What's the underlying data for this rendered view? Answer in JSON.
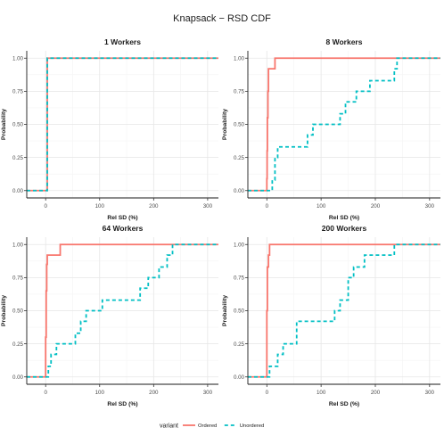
{
  "chart_data": {
    "type": "line",
    "title": "Knapsack − RSD CDF",
    "xlabel": "Rel SD (%)",
    "ylabel": "Probability",
    "xlim": [
      -35,
      320
    ],
    "ylim": [
      0,
      1
    ],
    "x_ticks": [
      "0",
      "100",
      "200",
      "300"
    ],
    "y_ticks": [
      "0.00",
      "0.25",
      "0.50",
      "0.75",
      "1.00"
    ],
    "grid": true,
    "legend": {
      "title": "variant",
      "position": "bottom",
      "entries": [
        {
          "name": "Ordered",
          "color": "#F8766D",
          "linetype": "solid"
        },
        {
          "name": "Unordered",
          "color": "#00BFC4",
          "linetype": "dashed"
        }
      ]
    },
    "panels": [
      {
        "title": "1 Workers",
        "series": [
          {
            "name": "Ordered",
            "x": [
              -35,
              3,
              3,
              320
            ],
            "y": [
              0,
              0,
              1,
              1
            ]
          },
          {
            "name": "Unordered",
            "x": [
              -35,
              3,
              3,
              320
            ],
            "y": [
              0,
              0,
              1,
              1
            ]
          }
        ]
      },
      {
        "title": "8 Workers",
        "series": [
          {
            "name": "Ordered",
            "x": [
              -35,
              0,
              0,
              0.5,
              0.5,
              1,
              1,
              2,
              2,
              3,
              3,
              15,
              15,
              320
            ],
            "y": [
              0,
              0,
              0.09,
              0.09,
              0.3,
              0.3,
              0.55,
              0.55,
              0.75,
              0.75,
              0.92,
              0.92,
              1,
              1
            ]
          },
          {
            "name": "Unordered",
            "x": [
              -35,
              10,
              10,
              15,
              15,
              20,
              20,
              75,
              75,
              85,
              85,
              135,
              135,
              145,
              145,
              165,
              165,
              190,
              190,
              235,
              235,
              240,
              240,
              320
            ],
            "y": [
              0,
              0,
              0.08,
              0.08,
              0.25,
              0.25,
              0.33,
              0.33,
              0.42,
              0.42,
              0.5,
              0.5,
              0.58,
              0.58,
              0.67,
              0.67,
              0.75,
              0.75,
              0.83,
              0.83,
              0.92,
              0.92,
              1,
              1
            ]
          }
        ]
      },
      {
        "title": "64 Workers",
        "series": [
          {
            "name": "Ordered",
            "x": [
              -35,
              0,
              0,
              1,
              1,
              2,
              2,
              3,
              3,
              27,
              27,
              320
            ],
            "y": [
              0,
              0,
              0.3,
              0.3,
              0.65,
              0.65,
              0.85,
              0.85,
              0.92,
              0.92,
              1,
              1
            ]
          },
          {
            "name": "Unordered",
            "x": [
              -35,
              5,
              5,
              10,
              10,
              20,
              20,
              55,
              55,
              65,
              65,
              75,
              75,
              105,
              105,
              175,
              175,
              190,
              190,
              210,
              210,
              225,
              225,
              235,
              235,
              320
            ],
            "y": [
              0,
              0,
              0.08,
              0.08,
              0.17,
              0.17,
              0.25,
              0.25,
              0.33,
              0.33,
              0.42,
              0.42,
              0.5,
              0.5,
              0.58,
              0.58,
              0.67,
              0.67,
              0.75,
              0.75,
              0.83,
              0.83,
              0.92,
              0.92,
              1,
              1
            ]
          }
        ]
      },
      {
        "title": "200 Workers",
        "series": [
          {
            "name": "Ordered",
            "x": [
              -35,
              0,
              0,
              1,
              1,
              3,
              3,
              5,
              5,
              320
            ],
            "y": [
              0,
              0,
              0.5,
              0.5,
              0.83,
              0.83,
              0.92,
              0.92,
              1,
              1
            ]
          },
          {
            "name": "Unordered",
            "x": [
              -35,
              5,
              5,
              20,
              20,
              30,
              30,
              55,
              55,
              125,
              125,
              135,
              135,
              150,
              150,
              160,
              160,
              180,
              180,
              235,
              235,
              320
            ],
            "y": [
              0,
              0,
              0.08,
              0.08,
              0.17,
              0.17,
              0.25,
              0.25,
              0.42,
              0.42,
              0.5,
              0.5,
              0.58,
              0.58,
              0.75,
              0.75,
              0.83,
              0.83,
              0.92,
              0.92,
              1,
              1
            ]
          }
        ]
      }
    ]
  }
}
